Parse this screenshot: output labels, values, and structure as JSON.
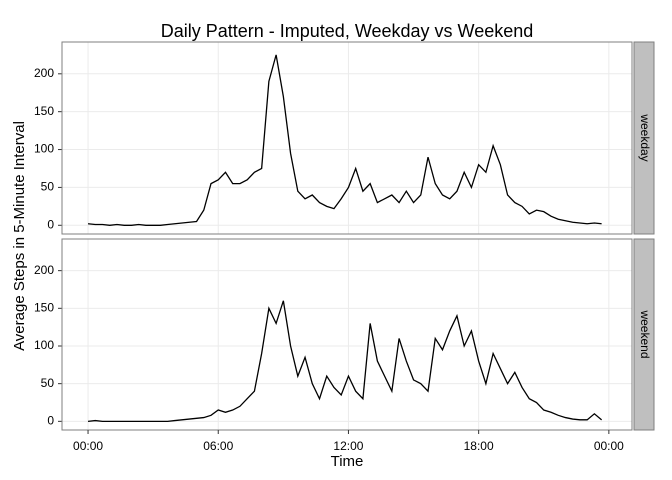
{
  "chart_data": {
    "type": "line",
    "title": "Daily Pattern - Imputed, Weekday vs Weekend",
    "x_label": "Time",
    "y_label": "Average Steps in 5-Minute Interval",
    "x": [
      0,
      20,
      40,
      60,
      80,
      100,
      120,
      140,
      160,
      180,
      200,
      220,
      240,
      260,
      280,
      300,
      320,
      340,
      360,
      380,
      400,
      420,
      440,
      460,
      480,
      500,
      520,
      540,
      560,
      580,
      600,
      620,
      640,
      660,
      680,
      700,
      720,
      740,
      760,
      780,
      800,
      820,
      840,
      860,
      880,
      900,
      920,
      940,
      960,
      980,
      1000,
      1020,
      1040,
      1060,
      1080,
      1100,
      1120,
      1140,
      1160,
      1180,
      1200,
      1220,
      1240,
      1260,
      1280,
      1300,
      1320,
      1340,
      1360,
      1380,
      1400,
      1420
    ],
    "series": [
      {
        "name": "weekday",
        "color": "#000000",
        "values": [
          2,
          1,
          1,
          0,
          1,
          0,
          0,
          1,
          0,
          0,
          0,
          1,
          2,
          3,
          4,
          5,
          20,
          55,
          60,
          70,
          55,
          55,
          60,
          70,
          75,
          190,
          225,
          170,
          95,
          45,
          35,
          40,
          30,
          25,
          22,
          35,
          50,
          75,
          45,
          55,
          30,
          35,
          40,
          30,
          45,
          30,
          40,
          90,
          55,
          40,
          35,
          45,
          70,
          50,
          80,
          70,
          105,
          80,
          40,
          30,
          25,
          15,
          20,
          18,
          12,
          8,
          6,
          4,
          3,
          2,
          3,
          2
        ]
      },
      {
        "name": "weekend",
        "color": "#000000",
        "values": [
          0,
          1,
          0,
          0,
          0,
          0,
          0,
          0,
          0,
          0,
          0,
          0,
          1,
          2,
          3,
          4,
          5,
          8,
          15,
          12,
          15,
          20,
          30,
          40,
          90,
          150,
          130,
          160,
          100,
          60,
          85,
          50,
          30,
          60,
          45,
          35,
          60,
          40,
          30,
          130,
          80,
          60,
          40,
          110,
          80,
          55,
          50,
          40,
          110,
          95,
          120,
          140,
          100,
          120,
          80,
          50,
          90,
          70,
          50,
          65,
          45,
          30,
          25,
          15,
          12,
          8,
          5,
          3,
          2,
          2,
          10,
          2
        ]
      }
    ],
    "xlim": [
      -72,
      1504
    ],
    "xticks": [
      {
        "value": 0,
        "label": "00:00"
      },
      {
        "value": 360,
        "label": "06:00"
      },
      {
        "value": 720,
        "label": "12:00"
      },
      {
        "value": 1080,
        "label": "18:00"
      },
      {
        "value": 1440,
        "label": "00:00"
      }
    ],
    "ylim": [
      -11.5,
      242
    ],
    "yticks": [
      0,
      50,
      100,
      150,
      200
    ],
    "grid": true
  }
}
